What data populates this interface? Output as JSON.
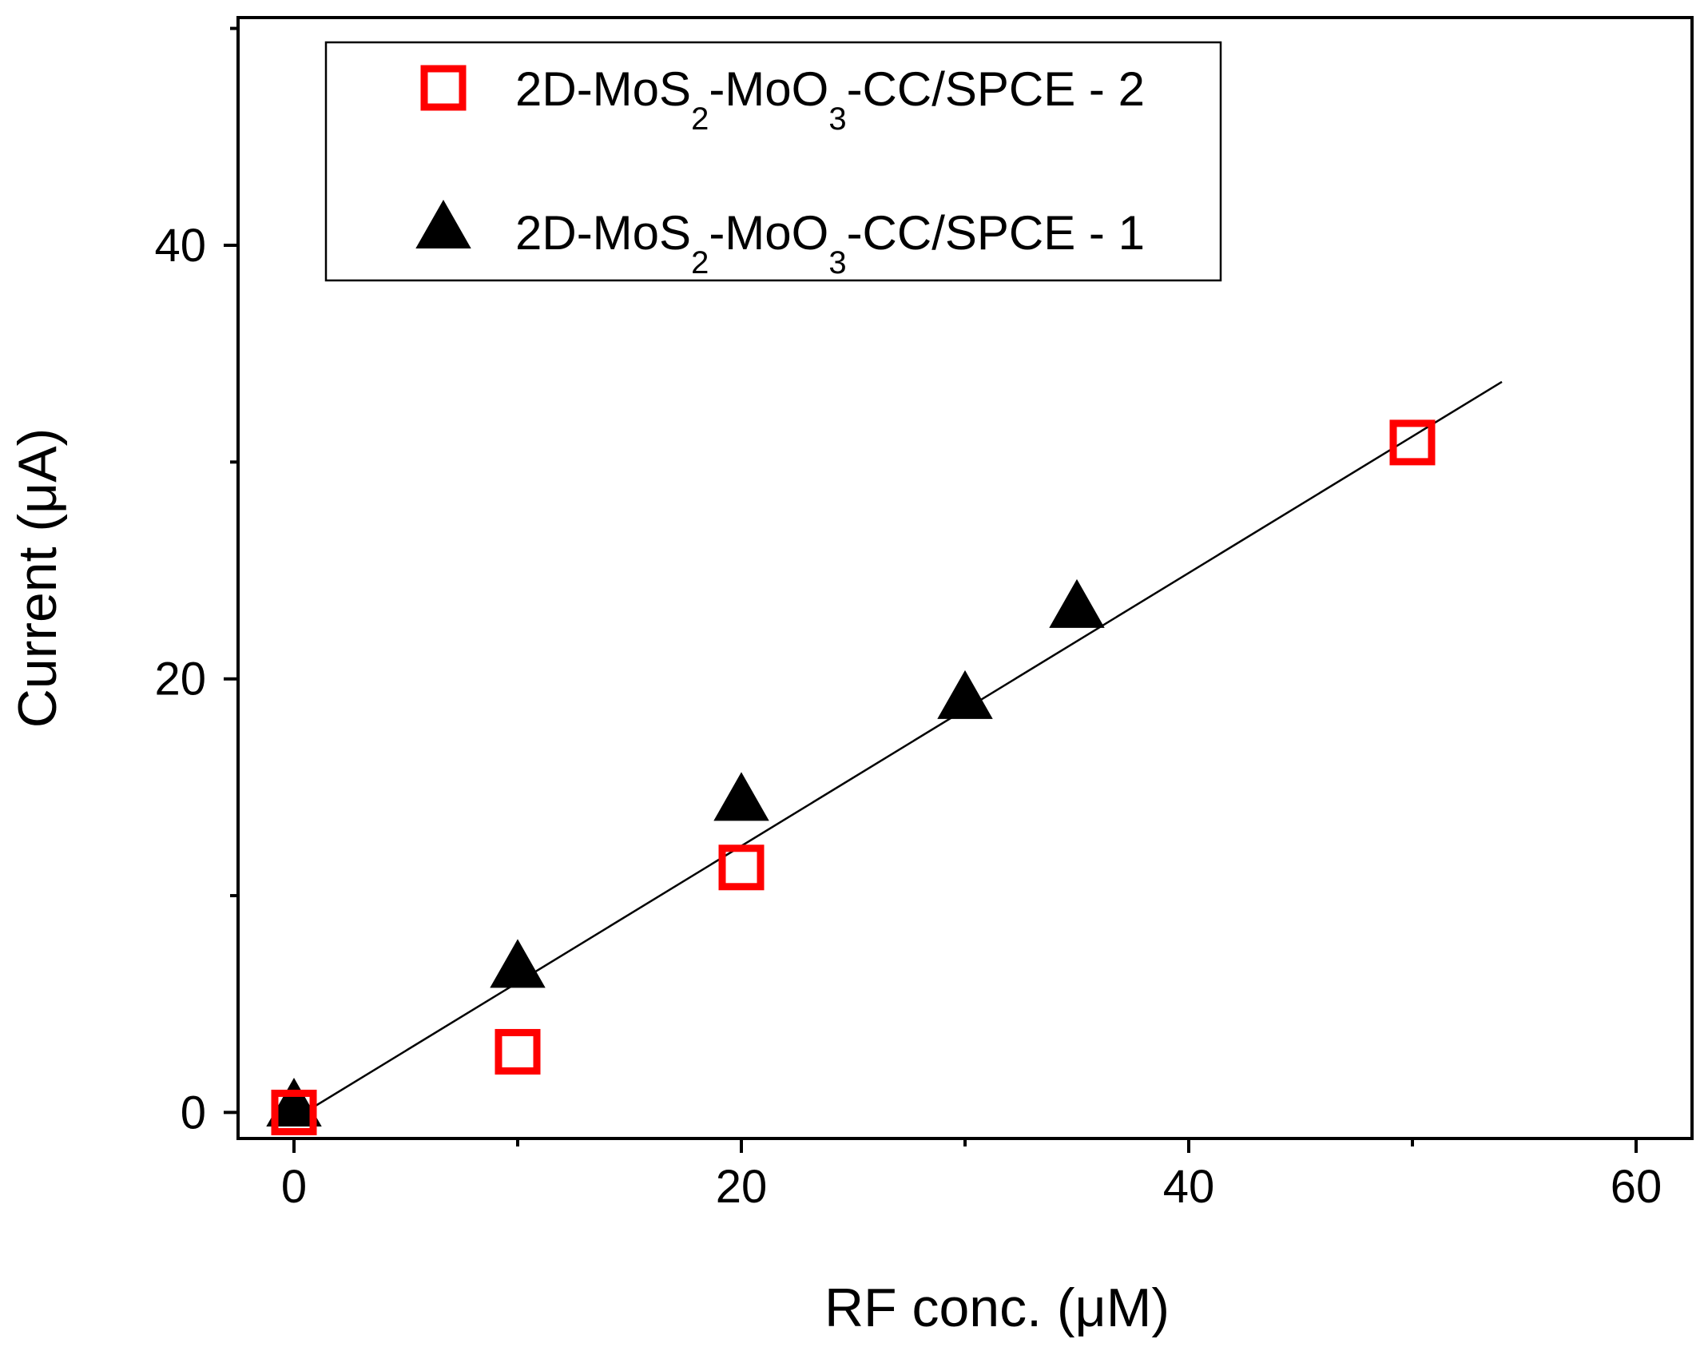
{
  "chart_data": {
    "type": "scatter",
    "title": "",
    "xlabel": "RF conc. (μM)",
    "ylabel": "Current (μA)",
    "xlim": [
      -2.5,
      62.5
    ],
    "ylim": [
      -1.2,
      50.5
    ],
    "x_ticks": [
      0,
      20,
      40,
      60
    ],
    "x_tick_labels": [
      "0",
      "20",
      "40",
      "60"
    ],
    "x_minor_ticks": [
      10,
      30,
      50
    ],
    "y_ticks": [
      0,
      20,
      40
    ],
    "y_tick_labels": [
      "0",
      "20",
      "40"
    ],
    "y_minor_ticks": [
      10,
      30,
      50
    ],
    "grid": false,
    "legend_position": "top-center",
    "series": [
      {
        "name": "2D-MoS2-MoO3-CC/SPCE - 2",
        "legend_parts": [
          "2D-MoS",
          "2",
          "-MoO",
          "3",
          "-CC/SPCE - 2"
        ],
        "marker": "open-square",
        "color": "#ff0000",
        "x": [
          0,
          10,
          20,
          50
        ],
        "y": [
          0,
          2.8,
          11.3,
          30.9
        ]
      },
      {
        "name": "2D-MoS2-MoO3-CC/SPCE - 1",
        "legend_parts": [
          "2D-MoS",
          "2",
          "-MoO",
          "3",
          "-CC/SPCE - 1"
        ],
        "marker": "filled-triangle",
        "color": "#000000",
        "x": [
          0,
          10,
          20,
          30,
          35
        ],
        "y": [
          0.2,
          6.6,
          14.3,
          19.0,
          23.2
        ]
      }
    ],
    "fit_line": {
      "x": [
        0,
        54
      ],
      "y": [
        -0.3,
        33.7
      ],
      "color": "#000000"
    }
  }
}
